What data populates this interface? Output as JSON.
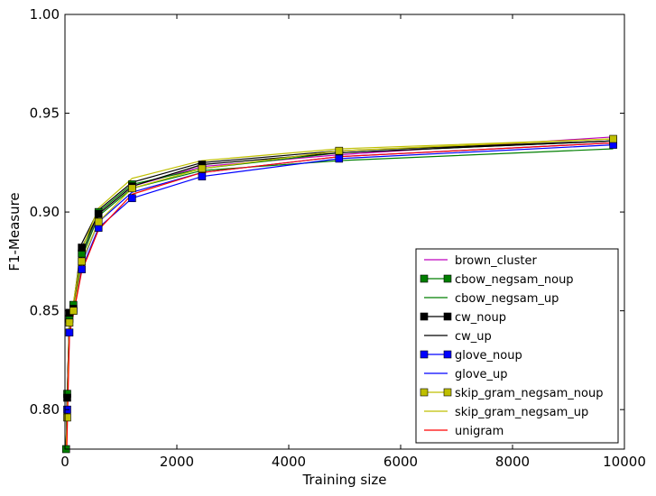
{
  "chart_data": {
    "type": "line",
    "title": "",
    "xlabel": "Training size",
    "ylabel": "F1-Measure",
    "xlim": [
      0,
      10000
    ],
    "ylim": [
      0.78,
      1.0
    ],
    "xticks": [
      "0",
      "2000",
      "4000",
      "6000",
      "8000",
      "10000"
    ],
    "yticks": [
      "0.80",
      "0.85",
      "0.90",
      "0.95",
      "1.00"
    ],
    "grid": false,
    "legend_position": "bottom-right",
    "x": [
      20,
      40,
      80,
      150,
      300,
      600,
      1200,
      2450,
      4900,
      9800
    ],
    "series": [
      {
        "name": "brown_cluster",
        "color": "#bf00bf",
        "marker": "none",
        "values": [
          0.775,
          0.808,
          0.845,
          0.853,
          0.878,
          0.899,
          0.913,
          0.923,
          0.929,
          0.938
        ]
      },
      {
        "name": "cbow_negsam_noup",
        "color": "#007f00",
        "marker": "square",
        "values": [
          0.78,
          0.808,
          0.846,
          0.853,
          0.879,
          0.9,
          0.914,
          0.922,
          0.93,
          0.936
        ]
      },
      {
        "name": "cbow_negsam_up",
        "color": "#007f00",
        "marker": "none",
        "values": [
          0.778,
          0.805,
          0.844,
          0.852,
          0.877,
          0.898,
          0.912,
          0.921,
          0.926,
          0.932
        ]
      },
      {
        "name": "cw_noup",
        "color": "#000000",
        "marker": "square",
        "values": [
          0.779,
          0.806,
          0.849,
          0.851,
          0.882,
          0.899,
          0.913,
          0.924,
          0.93,
          0.936
        ]
      },
      {
        "name": "cw_up",
        "color": "#000000",
        "marker": "none",
        "values": [
          0.779,
          0.807,
          0.85,
          0.853,
          0.884,
          0.901,
          0.915,
          0.925,
          0.931,
          0.936
        ]
      },
      {
        "name": "glove_noup",
        "color": "#0000ff",
        "marker": "square",
        "values": [
          0.775,
          0.8,
          0.839,
          0.85,
          0.871,
          0.892,
          0.907,
          0.918,
          0.927,
          0.934
        ]
      },
      {
        "name": "glove_up",
        "color": "#0000ff",
        "marker": "none",
        "values": [
          0.776,
          0.802,
          0.842,
          0.851,
          0.874,
          0.895,
          0.91,
          0.92,
          0.928,
          0.935
        ]
      },
      {
        "name": "skip_gram_negsam_noup",
        "color": "#bfbf00",
        "marker": "square",
        "values": [
          0.777,
          0.796,
          0.844,
          0.85,
          0.875,
          0.895,
          0.912,
          0.922,
          0.931,
          0.937
        ]
      },
      {
        "name": "skip_gram_negsam_up",
        "color": "#bfbf00",
        "marker": "none",
        "values": [
          0.778,
          0.8,
          0.846,
          0.854,
          0.881,
          0.902,
          0.917,
          0.926,
          0.932,
          0.937
        ]
      },
      {
        "name": "unigram",
        "color": "#ff0000",
        "marker": "none",
        "values": [
          0.762,
          0.79,
          0.838,
          0.848,
          0.87,
          0.891,
          0.909,
          0.92,
          0.928,
          0.935
        ]
      }
    ]
  }
}
